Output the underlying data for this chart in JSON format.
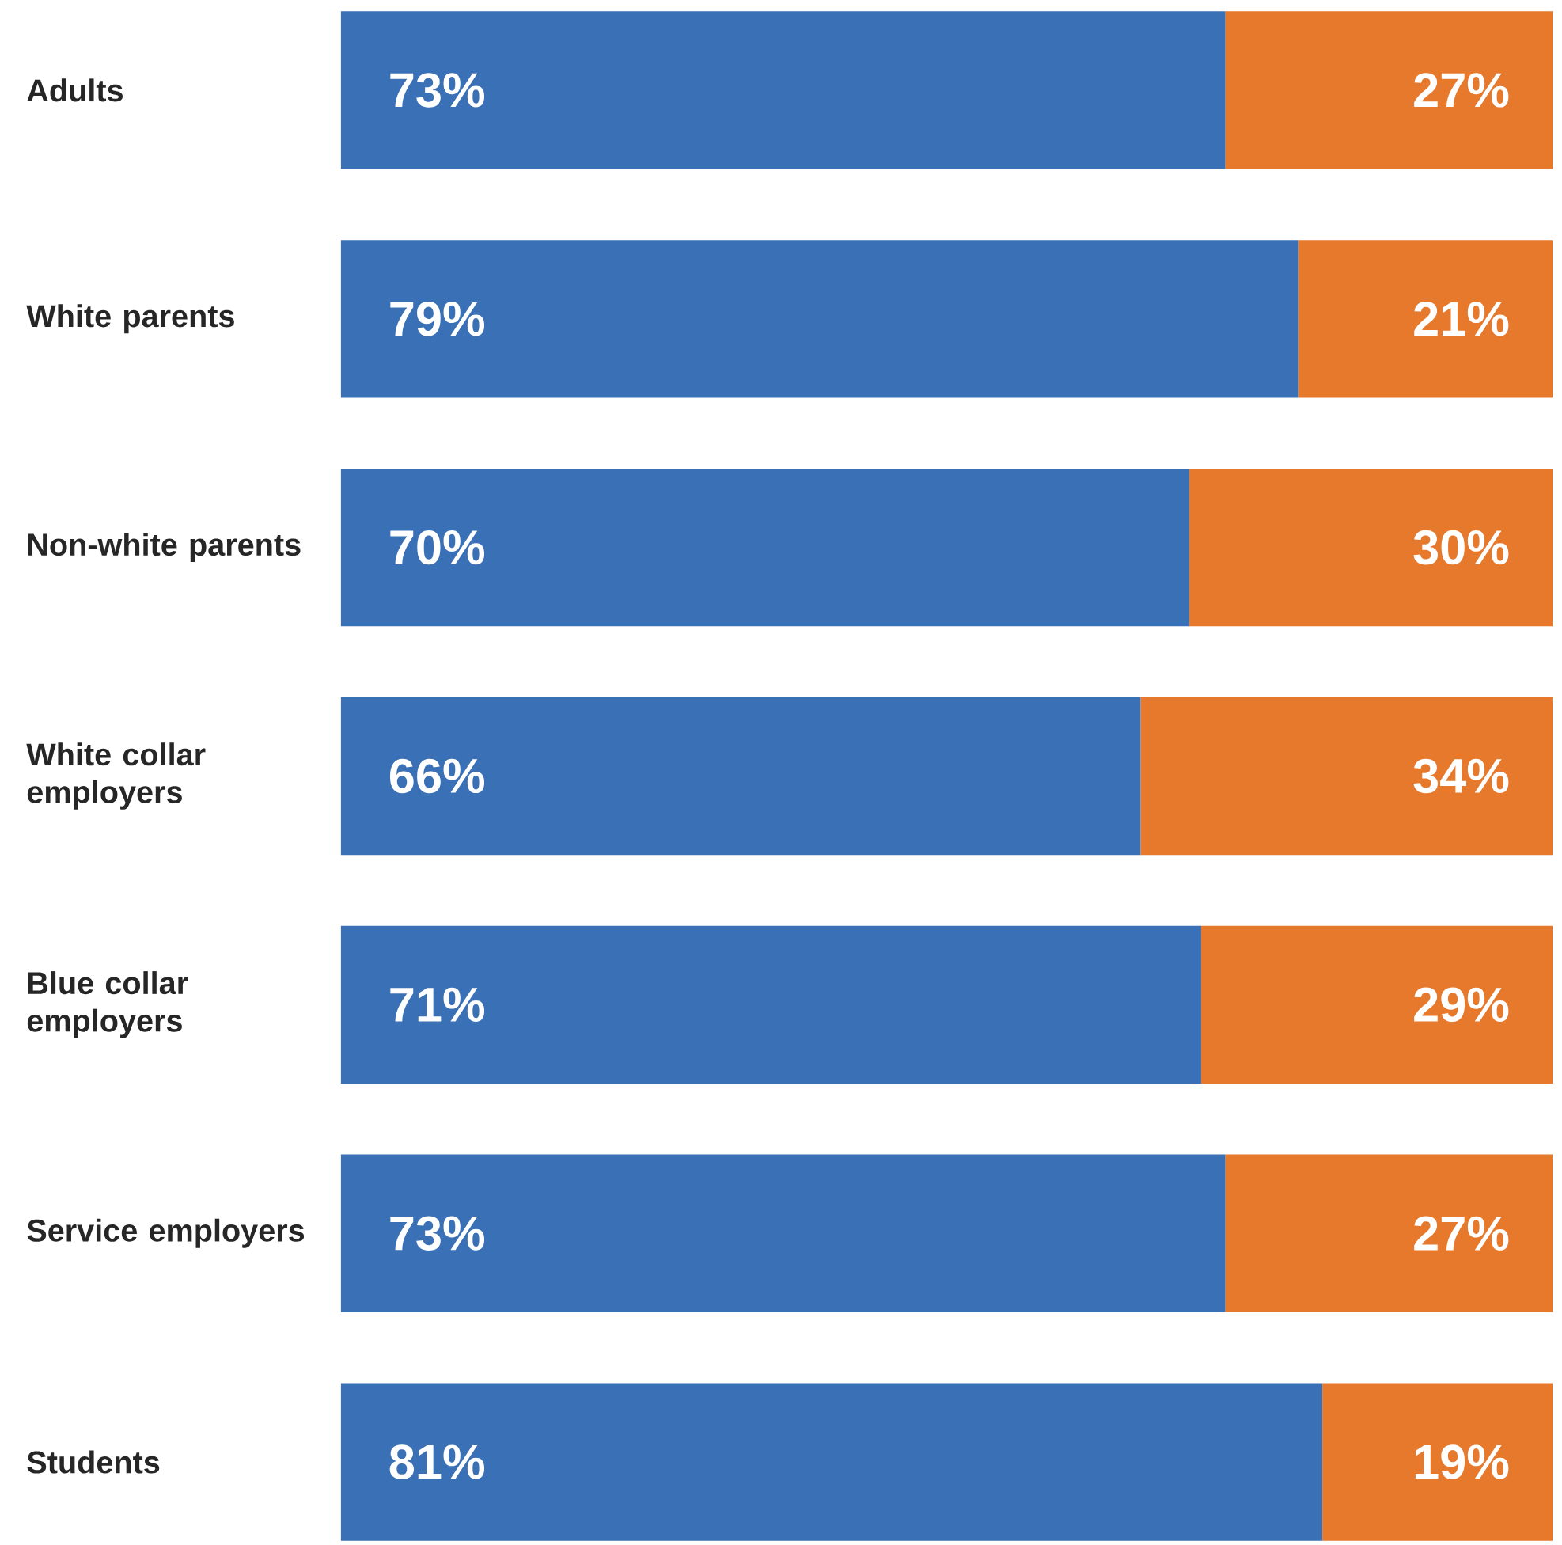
{
  "chart_data": {
    "type": "bar",
    "orientation": "horizontal",
    "stacked": true,
    "tick_labels": "y",
    "categories": [
      "Adults",
      "White parents",
      "Non-white parents",
      "White collar employers",
      "Blue collar employers",
      "Service employers",
      "Students"
    ],
    "series": [
      {
        "color": "#3a70b6",
        "values": [
          73,
          79,
          70,
          66,
          71,
          73,
          81
        ],
        "value_labels": [
          "73%",
          "79%",
          "70%",
          "66%",
          "71%",
          "73%",
          "81%"
        ]
      },
      {
        "color": "#e6792b",
        "values": [
          27,
          21,
          30,
          34,
          29,
          27,
          19
        ],
        "value_labels": [
          "27%",
          "21%",
          "30%",
          "34%",
          "29%",
          "27%",
          "19%"
        ]
      }
    ]
  }
}
